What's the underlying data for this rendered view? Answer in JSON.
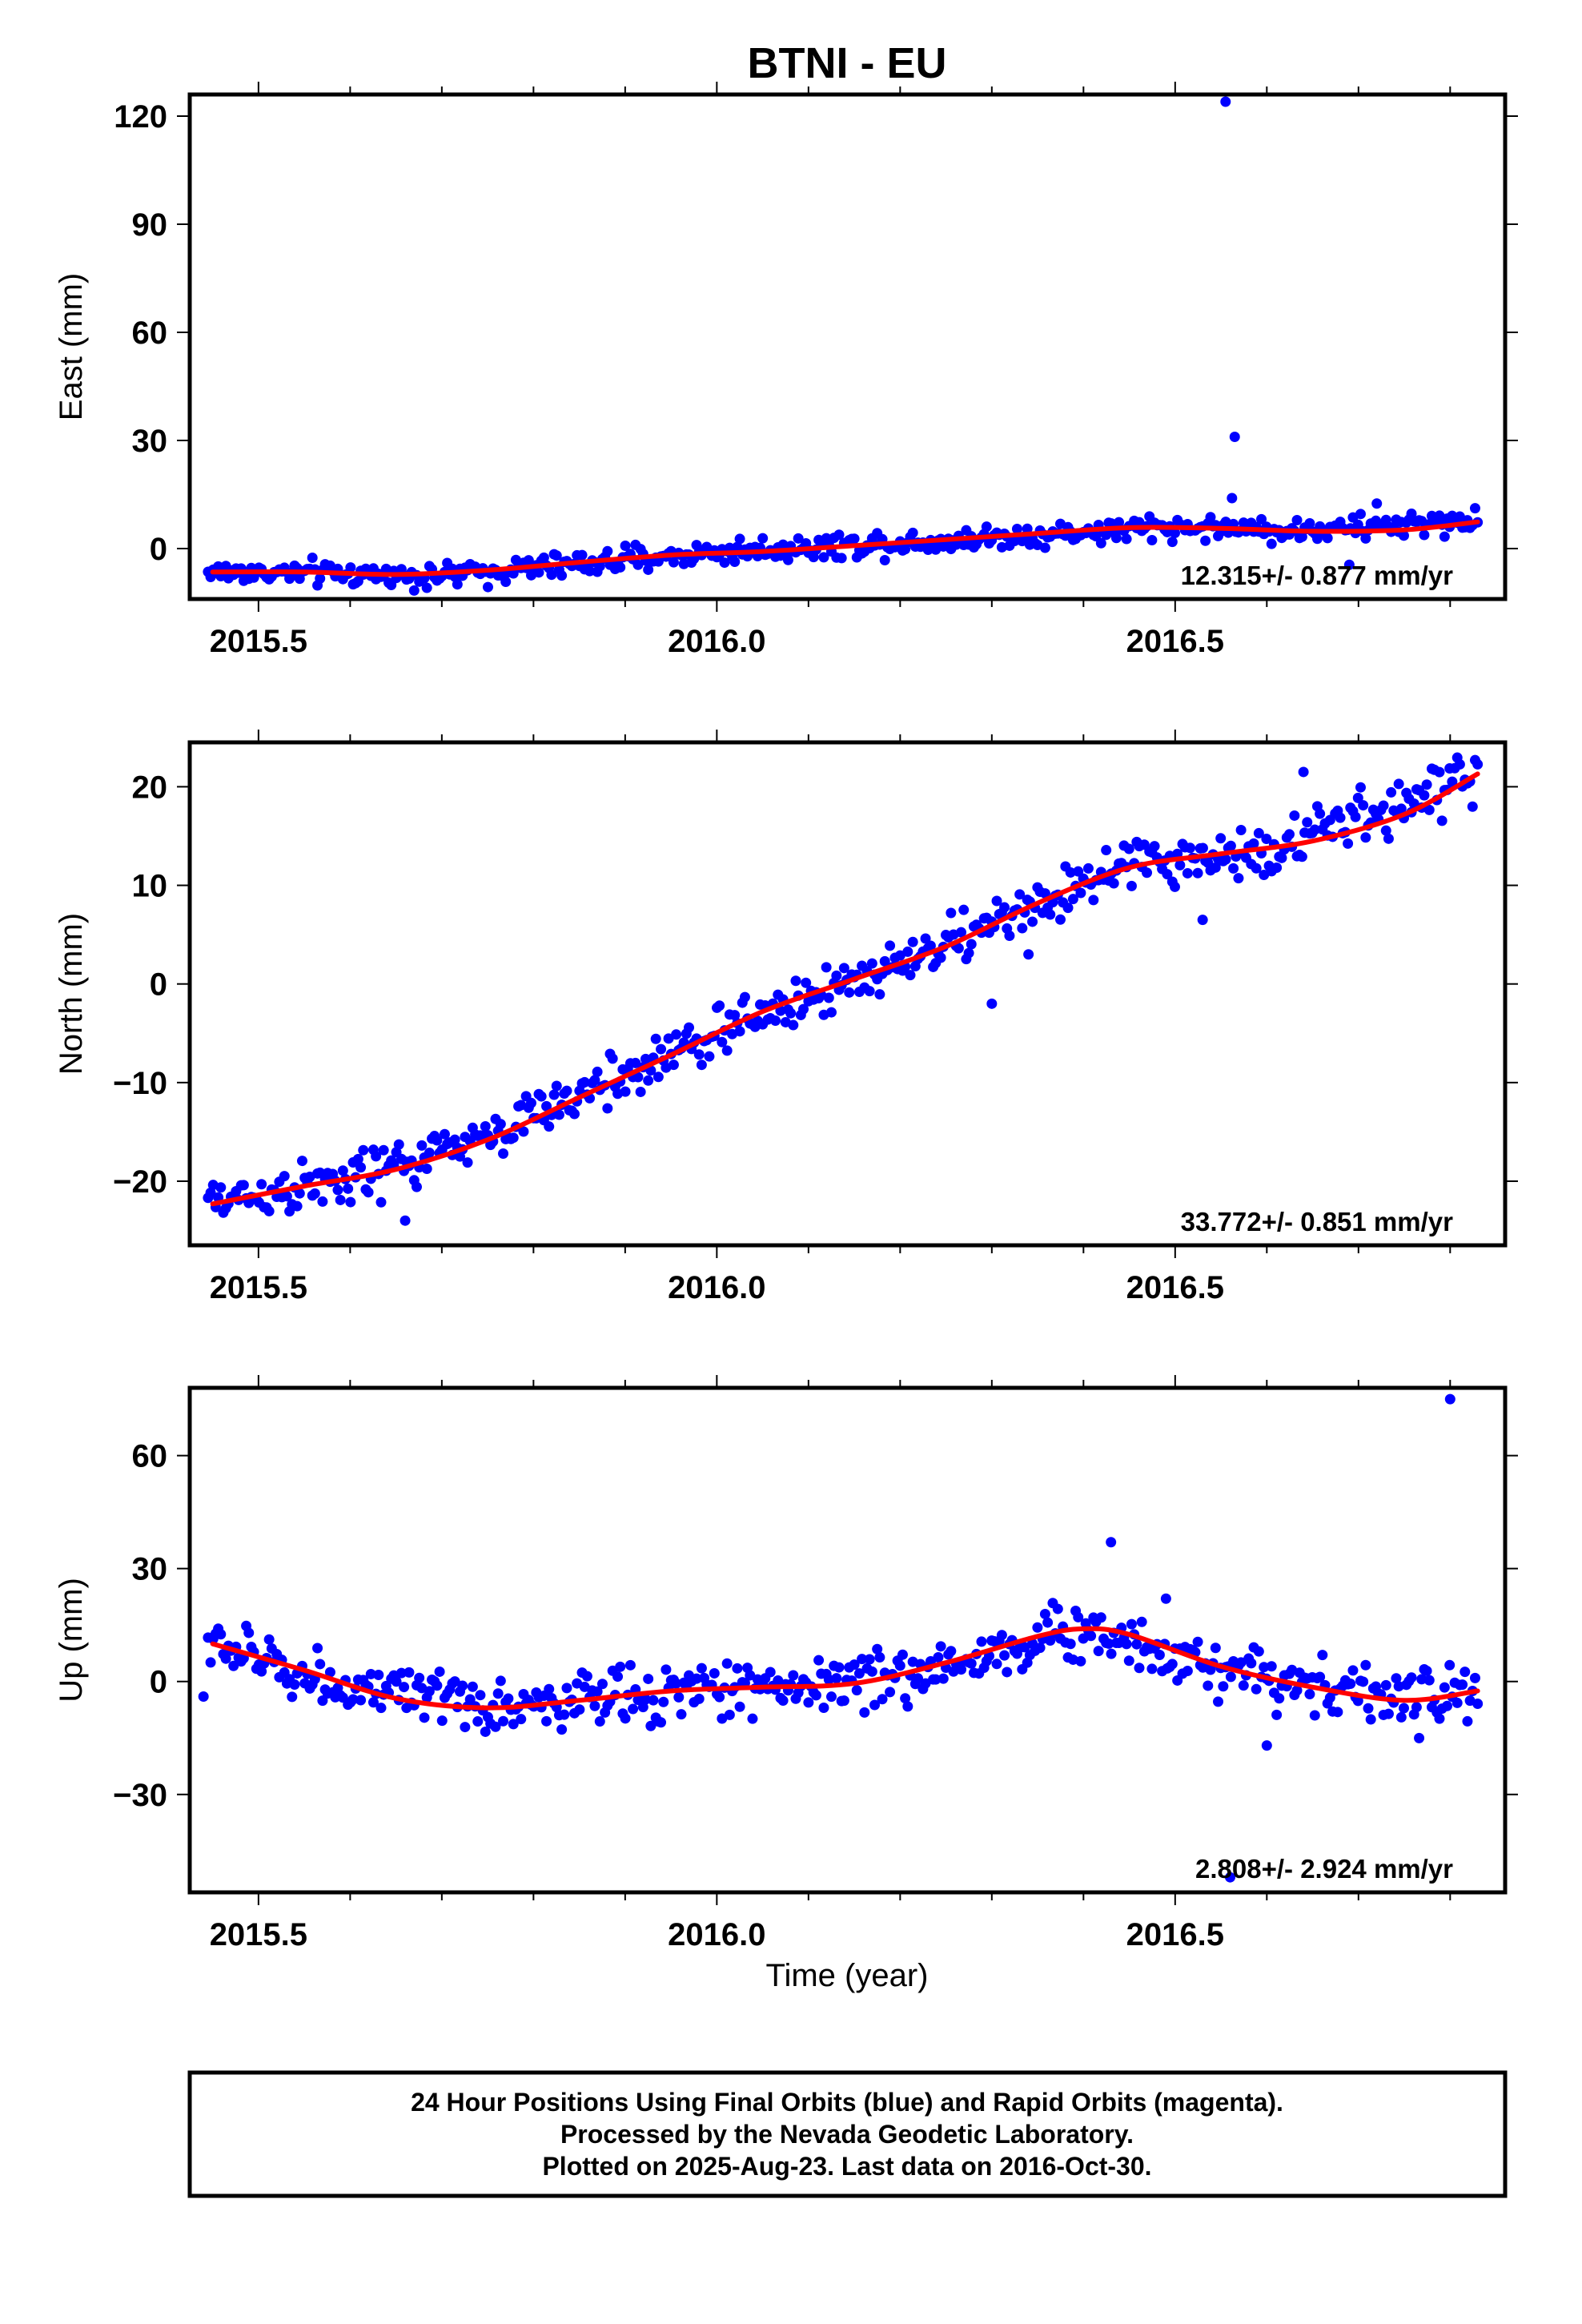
{
  "title": "BTNI - EU",
  "xlabel": "Time (year)",
  "footer": {
    "line1": "24 Hour Positions Using Final Orbits (blue) and Rapid Orbits (magenta).",
    "line2": "Processed by the Nevada Geodetic Laboratory.",
    "line3": "Plotted on 2025-Aug-23. Last data on 2016-Oct-30."
  },
  "colors": {
    "points": "#0000ff",
    "fit": "#ff0000",
    "frame": "#000000"
  },
  "chart_data": [
    {
      "type": "scatter",
      "panel": "east",
      "ylabel": "East (mm)",
      "rate_text": "12.315+/- 0.877 mm/yr",
      "xlim": [
        2015.425,
        2016.86
      ],
      "ylim": [
        -14,
        126
      ],
      "xticks": [
        2015.5,
        2016.0,
        2016.5
      ],
      "xtick_labels": [
        "2015.5",
        "2016.0",
        "2016.5"
      ],
      "yticks": [
        0,
        30,
        60,
        90,
        120
      ],
      "ytick_labels": [
        "0",
        "30",
        "60",
        "90",
        "120"
      ],
      "fit": {
        "x": [
          2015.45,
          2015.55,
          2015.65,
          2015.75,
          2015.85,
          2015.95,
          2016.05,
          2016.15,
          2016.25,
          2016.35,
          2016.45,
          2016.55,
          2016.65,
          2016.75,
          2016.83
        ],
        "y": [
          -6.5,
          -6.5,
          -7.2,
          -6,
          -3.8,
          -1.8,
          -0.8,
          0.8,
          2.5,
          4.2,
          5.8,
          5.6,
          4.8,
          5.2,
          7.4
        ]
      },
      "trend": [
        [
          2015.45,
          -6.5
        ],
        [
          2015.7,
          -7.5
        ],
        [
          2016.0,
          -1.0
        ],
        [
          2016.3,
          3.0
        ],
        [
          2016.5,
          6.0
        ],
        [
          2016.65,
          5.0
        ],
        [
          2016.83,
          8.0
        ]
      ],
      "scatter": 1.8,
      "outliers": [
        [
          2016.555,
          124
        ],
        [
          2016.565,
          31
        ],
        [
          2016.562,
          14
        ],
        [
          2016.72,
          12.5
        ],
        [
          2016.69,
          -4.5
        ]
      ]
    },
    {
      "type": "scatter",
      "panel": "north",
      "ylabel": "North (mm)",
      "rate_text": "33.772+/- 0.851 mm/yr",
      "xlim": [
        2015.425,
        2016.86
      ],
      "ylim": [
        -26.5,
        24.5
      ],
      "xticks": [
        2015.5,
        2016.0,
        2016.5
      ],
      "xtick_labels": [
        "2015.5",
        "2016.0",
        "2016.5"
      ],
      "yticks": [
        -20,
        -10,
        0,
        10,
        20
      ],
      "ytick_labels": [
        "−20",
        "−10",
        "0",
        "10",
        "20"
      ],
      "fit": {
        "x": [
          2015.45,
          2015.55,
          2015.65,
          2015.75,
          2015.85,
          2015.95,
          2016.05,
          2016.15,
          2016.25,
          2016.35,
          2016.45,
          2016.55,
          2016.65,
          2016.75,
          2016.83
        ],
        "y": [
          -22.3,
          -20.5,
          -18.8,
          -15.8,
          -11.5,
          -7.2,
          -2.8,
          0.5,
          3.8,
          8.2,
          11.8,
          13.2,
          14.5,
          17.2,
          21.3
        ]
      },
      "trend": [
        [
          2015.45,
          -22
        ],
        [
          2015.6,
          -20
        ],
        [
          2015.75,
          -15.5
        ],
        [
          2016.0,
          -5
        ],
        [
          2016.25,
          4
        ],
        [
          2016.45,
          12
        ],
        [
          2016.6,
          13.5
        ],
        [
          2016.83,
          21
        ]
      ],
      "scatter": 1.4,
      "outliers": [
        [
          2016.53,
          6.5
        ],
        [
          2016.34,
          3.0
        ],
        [
          2016.64,
          21.5
        ],
        [
          2015.66,
          -24
        ],
        [
          2016.3,
          -2.0
        ]
      ]
    },
    {
      "type": "scatter",
      "panel": "up",
      "ylabel": "Up (mm)",
      "rate_text": "2.808+/- 2.924 mm/yr",
      "xlim": [
        2015.425,
        2016.86
      ],
      "ylim": [
        -56,
        78
      ],
      "xticks": [
        2015.5,
        2016.0,
        2016.5
      ],
      "xtick_labels": [
        "2015.5",
        "2016.0",
        "2016.5"
      ],
      "yticks": [
        -30,
        0,
        30,
        60
      ],
      "ytick_labels": [
        "−30",
        "0",
        "30",
        "60"
      ],
      "fit": {
        "x": [
          2015.45,
          2015.55,
          2015.65,
          2015.75,
          2015.85,
          2015.95,
          2016.05,
          2016.15,
          2016.25,
          2016.35,
          2016.4,
          2016.45,
          2016.55,
          2016.65,
          2016.75,
          2016.83
        ],
        "y": [
          10,
          3,
          -4.5,
          -7,
          -5,
          -2.5,
          -1.5,
          -0.5,
          5,
          12,
          14,
          12.5,
          4,
          -1.5,
          -5,
          -2.5
        ]
      },
      "trend": [
        [
          2015.45,
          10
        ],
        [
          2015.6,
          -2
        ],
        [
          2015.75,
          -7
        ],
        [
          2016.0,
          -2
        ],
        [
          2016.2,
          1
        ],
        [
          2016.4,
          14
        ],
        [
          2016.55,
          4
        ],
        [
          2016.75,
          -5
        ],
        [
          2016.83,
          -2
        ]
      ],
      "scatter": 4.0,
      "outliers": [
        [
          2016.8,
          75
        ],
        [
          2016.43,
          37
        ],
        [
          2016.49,
          22
        ],
        [
          2016.56,
          -52
        ],
        [
          2015.44,
          -4
        ],
        [
          2016.6,
          -17
        ]
      ]
    }
  ]
}
